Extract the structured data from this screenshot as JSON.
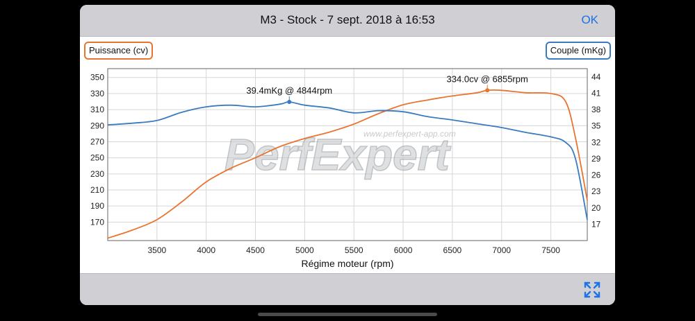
{
  "header": {
    "title": "M3  - Stock - 7 sept. 2018 à 16:53",
    "ok_label": "OK"
  },
  "legend": {
    "left": "Puissance (cv)",
    "right": "Couple (mKg)"
  },
  "watermark": {
    "url": "www.perfexpert-app.com",
    "brand": "PerfExpert"
  },
  "colors": {
    "power": "#e8742f",
    "torque": "#3a7bbf",
    "accent": "#1a73e8",
    "bar": "#cfcfd4"
  },
  "footer": {
    "expand_icon": "expand-icon"
  },
  "chart_data": {
    "type": "line",
    "xlabel": "Régime moteur (rpm)",
    "x_ticks": [
      3500,
      4000,
      4500,
      5000,
      5500,
      6000,
      6500,
      7000,
      7500
    ],
    "xlim": [
      3000,
      7870
    ],
    "y_left": {
      "label": "Puissance (cv)",
      "ticks": [
        170,
        190,
        210,
        230,
        250,
        270,
        290,
        310,
        330,
        350
      ],
      "lim": [
        147,
        361
      ]
    },
    "y_right": {
      "label": "Couple (mKg)",
      "ticks": [
        17,
        20,
        23,
        26,
        29,
        32,
        35,
        38,
        41,
        44
      ],
      "lim": [
        14.0,
        45.5
      ]
    },
    "grid": true,
    "series": [
      {
        "name": "Puissance (cv)",
        "axis": "left",
        "color": "#e8742f",
        "x": [
          3000,
          3250,
          3500,
          3750,
          4000,
          4250,
          4500,
          4750,
          5000,
          5250,
          5500,
          5750,
          6000,
          6250,
          6500,
          6750,
          6855,
          7000,
          7250,
          7500,
          7650,
          7750,
          7870
        ],
        "y": [
          150,
          160,
          173,
          195,
          220,
          237,
          250,
          264,
          274,
          282,
          292,
          305,
          316,
          322,
          327,
          331,
          334,
          334,
          331,
          330,
          320,
          275,
          197
        ]
      },
      {
        "name": "Couple (mKg)",
        "axis": "right",
        "color": "#3a7bbf",
        "x": [
          3000,
          3250,
          3500,
          3750,
          4000,
          4250,
          4500,
          4750,
          4844,
          5000,
          5250,
          5500,
          5750,
          6000,
          6250,
          6500,
          6750,
          7000,
          7250,
          7500,
          7650,
          7750,
          7870
        ],
        "y": [
          35.2,
          35.5,
          36.0,
          37.5,
          38.5,
          38.8,
          38.5,
          39.0,
          39.4,
          38.8,
          38.3,
          37.4,
          37.8,
          37.6,
          36.7,
          36.1,
          35.4,
          34.7,
          33.8,
          33.0,
          32.0,
          29.0,
          17.8
        ]
      }
    ],
    "annotations": [
      {
        "text": "39.4mKg @ 4844rpm",
        "x": 4844,
        "y": 39.4,
        "axis": "right"
      },
      {
        "text": "334.0cv @ 6855rpm",
        "x": 6855,
        "y": 334,
        "axis": "left"
      }
    ]
  }
}
